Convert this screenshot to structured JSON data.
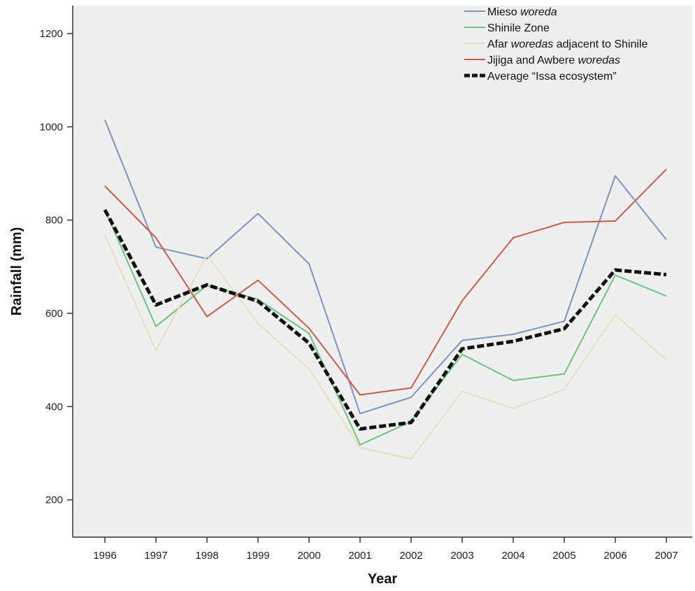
{
  "chart_data": {
    "type": "line",
    "title": "",
    "xlabel": "Year",
    "ylabel": "Rainfall (mm)",
    "categories": [
      "1996",
      "1997",
      "1998",
      "1999",
      "2000",
      "2001",
      "2002",
      "2003",
      "2004",
      "2005",
      "2006",
      "2007"
    ],
    "y_ticks": [
      200,
      400,
      600,
      800,
      1000,
      1200
    ],
    "ylim": [
      120,
      1260
    ],
    "grid": false,
    "legend_placement": "top-right",
    "plot_background": "#efefef",
    "series": [
      {
        "name": "Mieso woreda",
        "legend_parts": [
          {
            "text": "Mieso ",
            "italic": false
          },
          {
            "text": "woreda",
            "italic": true
          }
        ],
        "color": "#7b93c9",
        "dashed": false,
        "values": [
          1015,
          742,
          717,
          814,
          706,
          385,
          420,
          542,
          555,
          583,
          895,
          758
        ]
      },
      {
        "name": "Shinile Zone",
        "legend_parts": [
          {
            "text": "Shinile Zone",
            "italic": false
          }
        ],
        "color": "#6cc47c",
        "dashed": false,
        "values": [
          822,
          572,
          660,
          630,
          557,
          318,
          368,
          512,
          456,
          470,
          682,
          637
        ]
      },
      {
        "name": "Afar woredas adjacent to Shinile",
        "legend_parts": [
          {
            "text": "Afar ",
            "italic": false
          },
          {
            "text": "woredas",
            "italic": true
          },
          {
            "text": " adjacent to Shinile",
            "italic": false
          }
        ],
        "color": "#e6dfba",
        "dashed": false,
        "values": [
          768,
          520,
          725,
          578,
          481,
          312,
          288,
          433,
          396,
          437,
          597,
          500
        ]
      },
      {
        "name": "Jijiga and Awbere woredas",
        "legend_parts": [
          {
            "text": "Jijiga and Awbere ",
            "italic": false
          },
          {
            "text": "woredas",
            "italic": true
          }
        ],
        "color": "#cc5a48",
        "dashed": false,
        "values": [
          873,
          762,
          593,
          671,
          568,
          425,
          440,
          627,
          762,
          795,
          798,
          909
        ]
      },
      {
        "name": "Average “Issa ecosystem”",
        "legend_parts": [
          {
            "text": "Average “Issa ecosystem”",
            "italic": false
          }
        ],
        "color": "#111111",
        "dashed": true,
        "values": [
          822,
          618,
          661,
          626,
          536,
          352,
          366,
          524,
          540,
          567,
          693,
          683
        ]
      }
    ]
  }
}
